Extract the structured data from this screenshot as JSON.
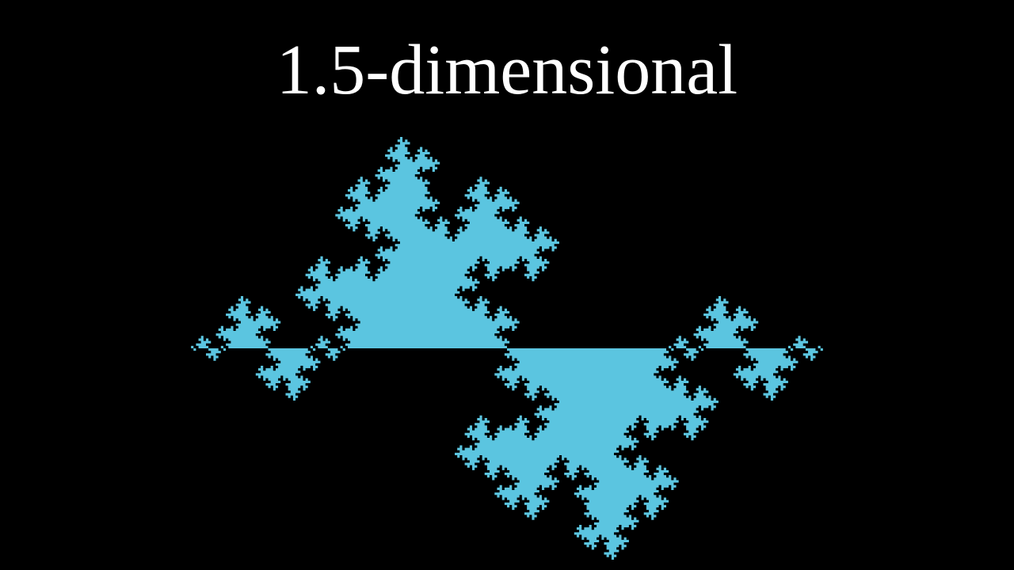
{
  "title": "1.5-dimensional"
}
